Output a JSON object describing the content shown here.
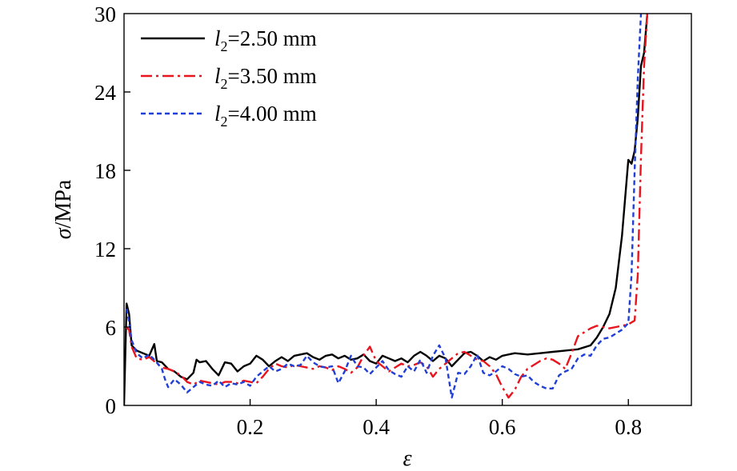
{
  "chart_data": {
    "type": "line",
    "title": "",
    "xlabel": "ε",
    "ylabel_symbol": "σ",
    "ylabel_unit": "/MPa",
    "xlim": [
      0,
      0.9
    ],
    "ylim": [
      0,
      30
    ],
    "xticks": [
      0.2,
      0.4,
      0.6,
      0.8
    ],
    "xtick_labels": [
      "0.2",
      "0.4",
      "0.6",
      "0.8"
    ],
    "yticks": [
      0,
      6,
      12,
      18,
      24,
      30
    ],
    "ytick_labels": [
      "0",
      "6",
      "12",
      "18",
      "24",
      "30"
    ],
    "grid": false,
    "legend_position": "top-left",
    "series": [
      {
        "name": "l2=2.50 mm",
        "legend_symbol": "l",
        "legend_subscript": "2",
        "legend_value": "=2.50 mm",
        "color": "#000000",
        "dash": "solid",
        "points": [
          [
            0,
            0
          ],
          [
            0.004,
            7.8
          ],
          [
            0.008,
            7.0
          ],
          [
            0.012,
            4.6
          ],
          [
            0.02,
            4.2
          ],
          [
            0.03,
            4.0
          ],
          [
            0.04,
            3.8
          ],
          [
            0.048,
            4.7
          ],
          [
            0.052,
            3.4
          ],
          [
            0.06,
            3.3
          ],
          [
            0.07,
            2.8
          ],
          [
            0.08,
            2.6
          ],
          [
            0.09,
            2.2
          ],
          [
            0.1,
            2.0
          ],
          [
            0.11,
            2.5
          ],
          [
            0.115,
            3.5
          ],
          [
            0.12,
            3.3
          ],
          [
            0.13,
            3.4
          ],
          [
            0.14,
            2.8
          ],
          [
            0.15,
            2.3
          ],
          [
            0.16,
            3.3
          ],
          [
            0.17,
            3.2
          ],
          [
            0.18,
            2.6
          ],
          [
            0.19,
            3.0
          ],
          [
            0.2,
            3.2
          ],
          [
            0.21,
            3.8
          ],
          [
            0.22,
            3.5
          ],
          [
            0.23,
            3.0
          ],
          [
            0.24,
            3.4
          ],
          [
            0.25,
            3.7
          ],
          [
            0.26,
            3.4
          ],
          [
            0.27,
            3.8
          ],
          [
            0.28,
            3.9
          ],
          [
            0.29,
            4.0
          ],
          [
            0.3,
            3.7
          ],
          [
            0.31,
            3.5
          ],
          [
            0.32,
            3.8
          ],
          [
            0.33,
            3.9
          ],
          [
            0.34,
            3.6
          ],
          [
            0.35,
            3.8
          ],
          [
            0.36,
            3.5
          ],
          [
            0.37,
            3.6
          ],
          [
            0.38,
            3.9
          ],
          [
            0.39,
            3.4
          ],
          [
            0.4,
            3.2
          ],
          [
            0.41,
            3.8
          ],
          [
            0.42,
            3.6
          ],
          [
            0.43,
            3.4
          ],
          [
            0.44,
            3.6
          ],
          [
            0.45,
            3.3
          ],
          [
            0.46,
            3.8
          ],
          [
            0.47,
            4.1
          ],
          [
            0.48,
            3.8
          ],
          [
            0.49,
            3.4
          ],
          [
            0.5,
            3.8
          ],
          [
            0.51,
            3.6
          ],
          [
            0.52,
            3.0
          ],
          [
            0.53,
            3.5
          ],
          [
            0.54,
            4.0
          ],
          [
            0.55,
            4.1
          ],
          [
            0.56,
            3.8
          ],
          [
            0.57,
            3.4
          ],
          [
            0.58,
            3.7
          ],
          [
            0.59,
            3.5
          ],
          [
            0.6,
            3.8
          ],
          [
            0.62,
            4.0
          ],
          [
            0.64,
            3.9
          ],
          [
            0.66,
            4.0
          ],
          [
            0.68,
            4.1
          ],
          [
            0.7,
            4.2
          ],
          [
            0.72,
            4.3
          ],
          [
            0.74,
            4.6
          ],
          [
            0.75,
            5.2
          ],
          [
            0.76,
            6.0
          ],
          [
            0.77,
            7.0
          ],
          [
            0.78,
            9.0
          ],
          [
            0.79,
            13.0
          ],
          [
            0.8,
            18.8
          ],
          [
            0.805,
            18.5
          ],
          [
            0.81,
            19.5
          ],
          [
            0.815,
            22.0
          ],
          [
            0.82,
            26.0
          ],
          [
            0.825,
            27.0
          ],
          [
            0.83,
            30.0
          ]
        ]
      },
      {
        "name": "l2=3.50 mm",
        "legend_symbol": "l",
        "legend_subscript": "2",
        "legend_value": "=3.50 mm",
        "color": "#e8141e",
        "dash": "dashdot",
        "points": [
          [
            0.003,
            6.0
          ],
          [
            0.008,
            5.8
          ],
          [
            0.012,
            4.5
          ],
          [
            0.02,
            3.6
          ],
          [
            0.03,
            3.5
          ],
          [
            0.04,
            3.7
          ],
          [
            0.05,
            3.3
          ],
          [
            0.06,
            2.9
          ],
          [
            0.07,
            2.8
          ],
          [
            0.08,
            2.6
          ],
          [
            0.09,
            2.3
          ],
          [
            0.1,
            1.8
          ],
          [
            0.11,
            1.6
          ],
          [
            0.12,
            1.9
          ],
          [
            0.13,
            1.8
          ],
          [
            0.14,
            1.7
          ],
          [
            0.15,
            1.6
          ],
          [
            0.16,
            1.8
          ],
          [
            0.17,
            1.8
          ],
          [
            0.18,
            1.7
          ],
          [
            0.19,
            1.9
          ],
          [
            0.2,
            1.8
          ],
          [
            0.21,
            1.7
          ],
          [
            0.22,
            2.2
          ],
          [
            0.23,
            2.8
          ],
          [
            0.24,
            3.2
          ],
          [
            0.25,
            3.0
          ],
          [
            0.26,
            2.9
          ],
          [
            0.27,
            3.1
          ],
          [
            0.28,
            3.0
          ],
          [
            0.29,
            2.9
          ],
          [
            0.3,
            2.8
          ],
          [
            0.31,
            3.0
          ],
          [
            0.32,
            2.9
          ],
          [
            0.33,
            2.7
          ],
          [
            0.34,
            3.0
          ],
          [
            0.35,
            2.8
          ],
          [
            0.36,
            2.5
          ],
          [
            0.37,
            2.9
          ],
          [
            0.38,
            3.8
          ],
          [
            0.39,
            4.5
          ],
          [
            0.4,
            3.4
          ],
          [
            0.41,
            3.0
          ],
          [
            0.42,
            2.6
          ],
          [
            0.43,
            2.9
          ],
          [
            0.44,
            3.2
          ],
          [
            0.45,
            3.0
          ],
          [
            0.46,
            3.1
          ],
          [
            0.47,
            3.3
          ],
          [
            0.48,
            3.0
          ],
          [
            0.49,
            2.2
          ],
          [
            0.5,
            2.8
          ],
          [
            0.51,
            3.2
          ],
          [
            0.52,
            3.6
          ],
          [
            0.53,
            4.0
          ],
          [
            0.54,
            4.1
          ],
          [
            0.55,
            3.8
          ],
          [
            0.56,
            3.5
          ],
          [
            0.57,
            3.4
          ],
          [
            0.58,
            3.0
          ],
          [
            0.59,
            2.4
          ],
          [
            0.6,
            1.4
          ],
          [
            0.61,
            0.6
          ],
          [
            0.62,
            1.2
          ],
          [
            0.63,
            2.2
          ],
          [
            0.64,
            2.8
          ],
          [
            0.65,
            3.1
          ],
          [
            0.66,
            3.4
          ],
          [
            0.67,
            3.6
          ],
          [
            0.68,
            3.5
          ],
          [
            0.69,
            3.2
          ],
          [
            0.7,
            2.8
          ],
          [
            0.71,
            4.0
          ],
          [
            0.72,
            5.3
          ],
          [
            0.73,
            5.6
          ],
          [
            0.74,
            5.9
          ],
          [
            0.75,
            6.1
          ],
          [
            0.76,
            6.0
          ],
          [
            0.77,
            5.9
          ],
          [
            0.78,
            6.0
          ],
          [
            0.79,
            6.1
          ],
          [
            0.8,
            6.2
          ],
          [
            0.81,
            6.5
          ],
          [
            0.815,
            10.0
          ],
          [
            0.82,
            19.0
          ],
          [
            0.825,
            26.0
          ],
          [
            0.83,
            30.0
          ]
        ]
      },
      {
        "name": "l2=4.00 mm",
        "legend_symbol": "l",
        "legend_subscript": "2",
        "legend_value": "=4.00 mm",
        "color": "#1f3fd6",
        "dash": "dash",
        "points": [
          [
            0.004,
            7.4
          ],
          [
            0.008,
            6.4
          ],
          [
            0.012,
            5.0
          ],
          [
            0.02,
            4.0
          ],
          [
            0.03,
            3.6
          ],
          [
            0.04,
            3.9
          ],
          [
            0.05,
            3.4
          ],
          [
            0.06,
            2.8
          ],
          [
            0.065,
            2.0
          ],
          [
            0.07,
            1.4
          ],
          [
            0.08,
            2.0
          ],
          [
            0.09,
            1.6
          ],
          [
            0.1,
            1.0
          ],
          [
            0.11,
            1.4
          ],
          [
            0.12,
            1.8
          ],
          [
            0.13,
            1.6
          ],
          [
            0.14,
            1.5
          ],
          [
            0.15,
            1.9
          ],
          [
            0.16,
            1.4
          ],
          [
            0.17,
            1.7
          ],
          [
            0.18,
            1.6
          ],
          [
            0.19,
            1.8
          ],
          [
            0.2,
            1.5
          ],
          [
            0.21,
            2.2
          ],
          [
            0.22,
            2.6
          ],
          [
            0.23,
            3.0
          ],
          [
            0.24,
            2.6
          ],
          [
            0.25,
            2.8
          ],
          [
            0.26,
            3.2
          ],
          [
            0.27,
            3.0
          ],
          [
            0.28,
            3.1
          ],
          [
            0.29,
            3.8
          ],
          [
            0.3,
            3.3
          ],
          [
            0.31,
            3.0
          ],
          [
            0.32,
            2.9
          ],
          [
            0.33,
            3.0
          ],
          [
            0.34,
            1.7
          ],
          [
            0.35,
            2.6
          ],
          [
            0.36,
            3.8
          ],
          [
            0.37,
            3.0
          ],
          [
            0.38,
            2.9
          ],
          [
            0.39,
            2.4
          ],
          [
            0.4,
            2.9
          ],
          [
            0.41,
            3.4
          ],
          [
            0.42,
            2.7
          ],
          [
            0.43,
            2.4
          ],
          [
            0.44,
            2.2
          ],
          [
            0.45,
            3.0
          ],
          [
            0.46,
            2.6
          ],
          [
            0.47,
            3.5
          ],
          [
            0.48,
            2.5
          ],
          [
            0.49,
            3.8
          ],
          [
            0.5,
            4.6
          ],
          [
            0.51,
            3.6
          ],
          [
            0.52,
            0.6
          ],
          [
            0.53,
            2.5
          ],
          [
            0.54,
            2.4
          ],
          [
            0.55,
            3.0
          ],
          [
            0.56,
            3.9
          ],
          [
            0.57,
            2.5
          ],
          [
            0.58,
            2.3
          ],
          [
            0.59,
            2.6
          ],
          [
            0.6,
            3.0
          ],
          [
            0.61,
            2.8
          ],
          [
            0.62,
            2.4
          ],
          [
            0.63,
            2.2
          ],
          [
            0.64,
            2.3
          ],
          [
            0.65,
            1.8
          ],
          [
            0.66,
            1.5
          ],
          [
            0.67,
            1.3
          ],
          [
            0.68,
            1.3
          ],
          [
            0.69,
            2.3
          ],
          [
            0.7,
            2.6
          ],
          [
            0.71,
            2.8
          ],
          [
            0.72,
            3.6
          ],
          [
            0.73,
            3.9
          ],
          [
            0.74,
            3.8
          ],
          [
            0.75,
            4.6
          ],
          [
            0.76,
            5.1
          ],
          [
            0.77,
            5.2
          ],
          [
            0.78,
            5.5
          ],
          [
            0.79,
            5.8
          ],
          [
            0.8,
            6.3
          ],
          [
            0.805,
            10.0
          ],
          [
            0.81,
            18.0
          ],
          [
            0.815,
            25.0
          ],
          [
            0.82,
            30.0
          ]
        ]
      }
    ]
  }
}
